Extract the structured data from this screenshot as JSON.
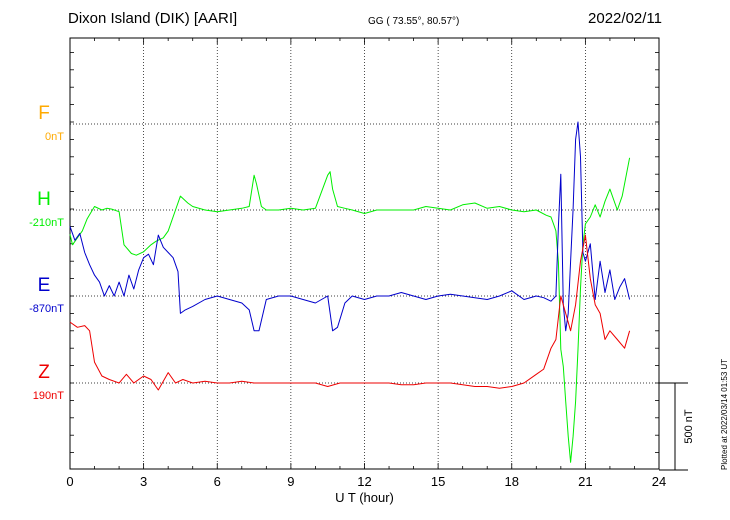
{
  "header": {
    "station": "Dixon Island (DIK)  [AARI]",
    "coords": "GG ( 73.55°,  80.57°)",
    "date": "2022/02/11"
  },
  "footer": {
    "plotted": "Plotted at 2022/03/14 01:53 UT"
  },
  "chart_data": {
    "type": "line",
    "title": "Dixon Island (DIK)  [AARI]",
    "xlabel": "U T (hour)",
    "xlim": [
      0,
      24
    ],
    "xticks": [
      0,
      3,
      6,
      9,
      12,
      15,
      18,
      21,
      24
    ],
    "scale_bar": {
      "label": "500 nT",
      "value_nT": 500
    },
    "grid": true,
    "series": [
      {
        "name": "F",
        "baseline_label": "0nT",
        "color": "#ffaa00",
        "x": [],
        "y": []
      },
      {
        "name": "H",
        "baseline_label": "-210nT",
        "color": "#00ee00",
        "x": [
          0,
          0.1,
          0.3,
          0.5,
          0.7,
          1.0,
          1.3,
          1.5,
          1.7,
          2.0,
          2.2,
          2.5,
          2.7,
          3.0,
          3.3,
          3.5,
          3.8,
          4.0,
          4.3,
          4.5,
          4.8,
          5.0,
          5.5,
          6.0,
          6.5,
          7.0,
          7.3,
          7.5,
          7.6,
          7.8,
          8.0,
          8.5,
          9.0,
          9.5,
          10.0,
          10.5,
          10.6,
          10.7,
          10.9,
          11.2,
          11.5,
          12.0,
          12.5,
          13.0,
          13.5,
          14.0,
          14.5,
          15.0,
          15.5,
          16.0,
          16.5,
          17.0,
          17.5,
          18.0,
          18.5,
          19.0,
          19.4,
          19.6,
          19.7,
          19.8,
          19.9,
          20.0,
          20.1,
          20.2,
          20.3,
          20.4,
          20.5,
          20.6,
          20.7,
          20.8,
          20.9,
          21.0,
          21.2,
          21.4,
          21.6,
          21.8,
          22.0,
          22.3,
          22.5,
          22.8
        ],
        "y": [
          -140,
          -200,
          -160,
          -120,
          -50,
          20,
          0,
          10,
          5,
          -10,
          -200,
          -250,
          -260,
          -240,
          -200,
          -180,
          -160,
          -120,
          0,
          80,
          40,
          20,
          0,
          -10,
          0,
          10,
          20,
          200,
          150,
          20,
          0,
          0,
          10,
          0,
          10,
          200,
          220,
          120,
          20,
          10,
          0,
          -20,
          0,
          0,
          0,
          0,
          20,
          10,
          0,
          30,
          40,
          10,
          20,
          0,
          -10,
          0,
          -30,
          -40,
          -80,
          -120,
          -300,
          -800,
          -900,
          -1100,
          -1300,
          -1450,
          -1300,
          -1100,
          -800,
          -450,
          -200,
          -80,
          -40,
          30,
          -40,
          50,
          120,
          0,
          80,
          300
        ]
      },
      {
        "name": "E",
        "baseline_label": "-870nT",
        "color": "#0000cc",
        "x": [
          0,
          0.2,
          0.4,
          0.6,
          0.8,
          1.0,
          1.2,
          1.4,
          1.6,
          1.8,
          2.0,
          2.2,
          2.4,
          2.6,
          2.8,
          3.0,
          3.2,
          3.4,
          3.6,
          3.8,
          4.0,
          4.2,
          4.4,
          4.5,
          4.7,
          5.0,
          5.5,
          6.0,
          6.5,
          7.0,
          7.3,
          7.5,
          7.7,
          8.0,
          8.5,
          9.0,
          9.5,
          10.0,
          10.5,
          10.7,
          10.9,
          11.2,
          11.5,
          12.0,
          12.5,
          13.0,
          13.5,
          14.0,
          14.5,
          15.0,
          15.5,
          16.0,
          16.5,
          17.0,
          17.5,
          18.0,
          18.5,
          19.0,
          19.3,
          19.6,
          19.8,
          19.9,
          20.0,
          20.1,
          20.2,
          20.3,
          20.4,
          20.5,
          20.6,
          20.7,
          20.8,
          20.9,
          21.0,
          21.2,
          21.4,
          21.6,
          21.8,
          22.0,
          22.2,
          22.4,
          22.6,
          22.8
        ],
        "y": [
          400,
          320,
          360,
          250,
          180,
          120,
          80,
          0,
          60,
          0,
          80,
          0,
          120,
          40,
          150,
          220,
          240,
          180,
          350,
          280,
          250,
          220,
          140,
          -100,
          -80,
          -60,
          -20,
          0,
          -20,
          -40,
          -80,
          -200,
          -200,
          -20,
          0,
          0,
          -20,
          -40,
          0,
          -200,
          -180,
          -40,
          0,
          -20,
          0,
          0,
          20,
          0,
          -20,
          0,
          10,
          0,
          -10,
          -20,
          0,
          30,
          -20,
          0,
          -10,
          -30,
          0,
          400,
          700,
          -50,
          -200,
          -100,
          200,
          500,
          900,
          1000,
          800,
          250,
          200,
          300,
          -20,
          200,
          20,
          150,
          -20,
          50,
          100,
          -20
        ]
      },
      {
        "name": "Z",
        "baseline_label": "190nT",
        "color": "#ee0000",
        "x": [
          0,
          0.3,
          0.6,
          0.8,
          1.0,
          1.3,
          1.6,
          2.0,
          2.3,
          2.6,
          3.0,
          3.3,
          3.6,
          4.0,
          4.3,
          4.6,
          5.0,
          5.5,
          6.0,
          6.5,
          7.0,
          7.5,
          8.0,
          8.5,
          9.0,
          9.5,
          10.0,
          10.5,
          11.0,
          11.5,
          12.0,
          12.5,
          13.0,
          13.5,
          14.0,
          14.5,
          15.0,
          15.5,
          16.0,
          16.5,
          17.0,
          17.5,
          18.0,
          18.5,
          19.0,
          19.3,
          19.6,
          19.8,
          20.0,
          20.2,
          20.4,
          20.6,
          20.8,
          21.0,
          21.2,
          21.4,
          21.6,
          21.8,
          22.0,
          22.3,
          22.6,
          22.8
        ],
        "y": [
          350,
          320,
          330,
          300,
          120,
          40,
          20,
          0,
          50,
          0,
          40,
          20,
          -40,
          60,
          0,
          20,
          0,
          10,
          0,
          0,
          10,
          0,
          0,
          0,
          0,
          0,
          0,
          -20,
          0,
          0,
          0,
          0,
          0,
          -10,
          -10,
          0,
          0,
          0,
          -10,
          -20,
          -20,
          -30,
          -20,
          0,
          50,
          80,
          200,
          250,
          500,
          400,
          300,
          450,
          700,
          850,
          600,
          450,
          400,
          250,
          300,
          250,
          200,
          300
        ]
      }
    ]
  }
}
